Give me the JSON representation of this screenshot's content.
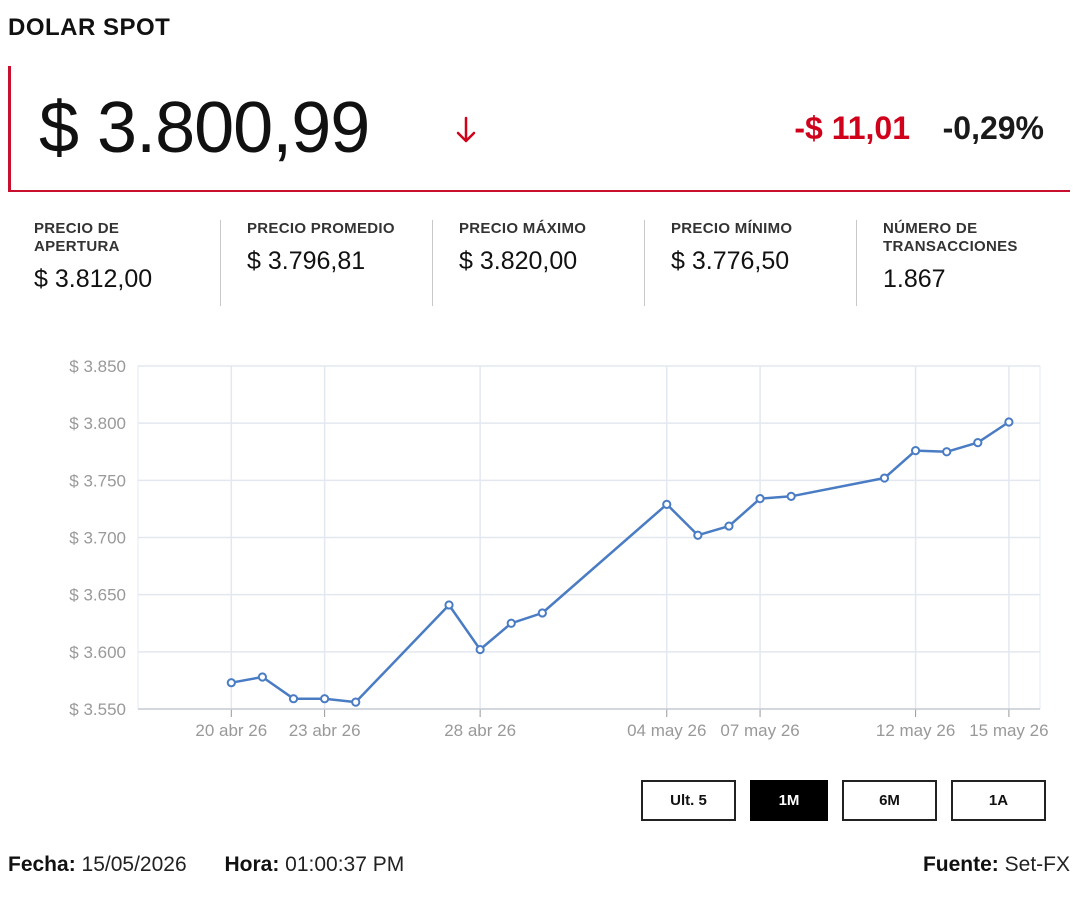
{
  "header": {
    "title": "DOLAR SPOT"
  },
  "quote": {
    "price": "$ 3.800,99",
    "change": "-$ 11,01",
    "change_pct": "-0,29%",
    "direction": "down",
    "down_color": "#d0021b"
  },
  "stats": [
    {
      "label": "PRECIO DE APERTURA",
      "value": "$ 3.812,00"
    },
    {
      "label": "PRECIO PROMEDIO",
      "value": "$ 3.796,81"
    },
    {
      "label": "PRECIO MÁXIMO",
      "value": "$ 3.820,00"
    },
    {
      "label": "PRECIO MÍNIMO",
      "value": "$ 3.776,50"
    },
    {
      "label": "NÚMERO DE TRANSACCIONES",
      "value": "1.867"
    }
  ],
  "chart_data": {
    "type": "line",
    "line_color": "#4a7cc4",
    "grid": true,
    "ylim": [
      3550,
      3850
    ],
    "yticks": [
      3550,
      3600,
      3650,
      3700,
      3750,
      3800,
      3850
    ],
    "ytick_labels": [
      "$ 3.550",
      "$ 3.600",
      "$ 3.650",
      "$ 3.700",
      "$ 3.750",
      "$ 3.800",
      "$ 3.850"
    ],
    "xtick_labels": [
      "20 abr 26",
      "23 abr 26",
      "28 abr 26",
      "04 may 26",
      "07 may 26",
      "12 may 26",
      "15 may 26"
    ],
    "xtick_dates": [
      "2026-04-20",
      "2026-04-23",
      "2026-04-28",
      "2026-05-04",
      "2026-05-07",
      "2026-05-12",
      "2026-05-15"
    ],
    "series": [
      {
        "x": [
          "2026-04-20",
          "2026-04-21",
          "2026-04-22",
          "2026-04-23",
          "2026-04-24",
          "2026-04-27",
          "2026-04-28",
          "2026-04-29",
          "2026-04-30",
          "2026-05-04",
          "2026-05-05",
          "2026-05-06",
          "2026-05-07",
          "2026-05-08",
          "2026-05-11",
          "2026-05-12",
          "2026-05-13",
          "2026-05-14",
          "2026-05-15"
        ],
        "values": [
          3573,
          3578,
          3559,
          3559,
          3556,
          3641,
          3602,
          3625,
          3634,
          3729,
          3702,
          3710,
          3734,
          3736,
          3752,
          3776,
          3775,
          3783,
          3801
        ]
      }
    ]
  },
  "ranges": [
    {
      "label": "Ult. 5",
      "active": false
    },
    {
      "label": "1M",
      "active": true
    },
    {
      "label": "6M",
      "active": false
    },
    {
      "label": "1A",
      "active": false
    }
  ],
  "footer": {
    "fecha_label": "Fecha:",
    "fecha": "15/05/2026",
    "hora_label": "Hora:",
    "hora": "01:00:37 PM",
    "fuente_label": "Fuente:",
    "fuente": "Set-FX"
  }
}
